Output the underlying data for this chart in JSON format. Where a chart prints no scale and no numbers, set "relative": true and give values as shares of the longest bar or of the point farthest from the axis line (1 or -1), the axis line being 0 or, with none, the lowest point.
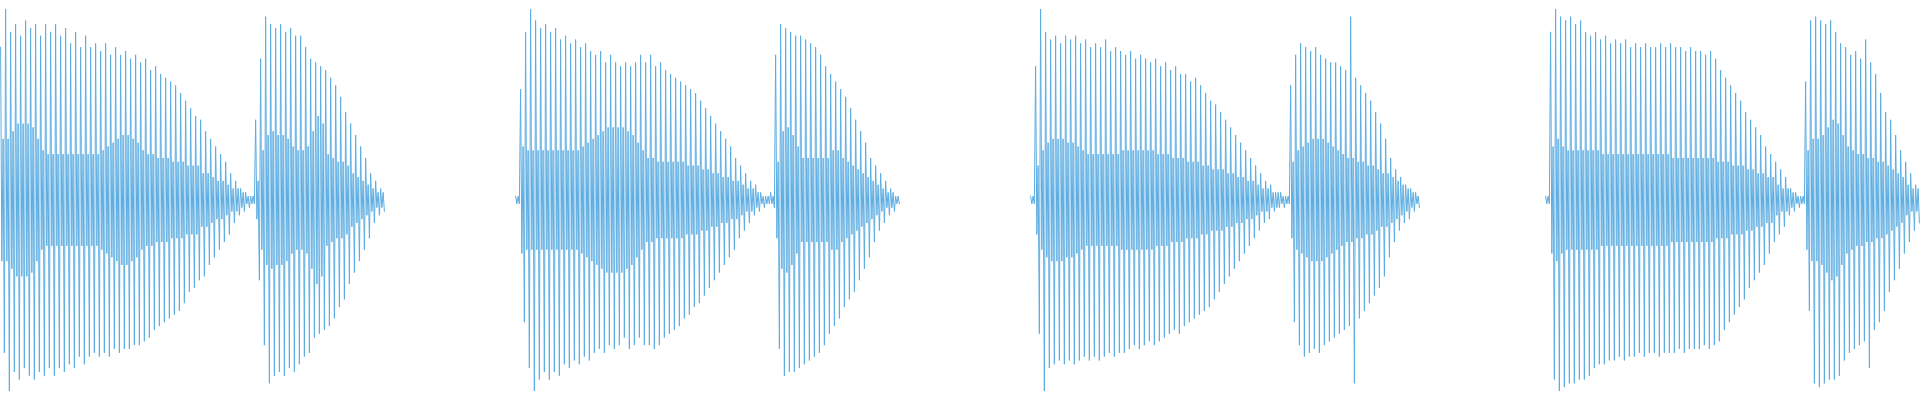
{
  "chart_data": [
    {
      "type": "line",
      "relative": true,
      "color": "#5dade2",
      "categories": [
        null,
        null,
        null,
        null,
        null,
        null,
        null,
        null,
        null,
        null,
        null,
        null,
        null,
        null,
        null,
        null,
        null,
        null,
        null,
        null,
        null,
        null,
        null,
        null,
        null,
        null,
        null,
        null,
        null,
        null,
        null,
        null,
        null,
        null,
        null,
        null,
        null,
        null,
        null,
        null,
        null,
        null,
        null,
        null,
        null,
        null,
        null,
        null,
        null,
        null,
        null,
        null,
        null,
        null,
        null,
        null,
        null,
        null,
        null,
        null,
        null,
        null,
        null,
        null,
        null,
        null,
        null,
        null,
        null,
        null,
        null,
        null,
        null,
        null,
        null,
        null,
        null,
        null,
        null,
        null,
        null,
        null,
        null,
        null,
        null,
        null,
        null,
        null,
        null,
        null,
        null,
        null,
        null,
        null,
        null,
        null,
        null,
        null,
        null,
        null,
        null,
        null,
        null,
        null,
        null,
        null,
        null,
        null,
        null,
        null,
        null,
        null,
        null,
        null,
        null,
        null,
        null,
        null,
        null,
        null,
        null,
        null,
        null,
        null,
        null,
        null,
        null,
        null,
        null,
        null,
        null,
        null,
        null,
        null,
        null,
        null,
        null,
        null,
        null,
        null,
        null,
        null,
        null,
        null,
        null,
        null,
        null,
        null,
        null,
        null,
        null,
        null,
        null,
        null,
        null,
        null,
        null,
        null,
        null,
        null,
        null,
        null,
        null,
        null,
        null,
        null,
        null,
        null,
        null,
        null,
        null,
        null,
        null,
        null,
        null,
        null,
        null,
        null,
        null,
        null,
        null,
        null,
        null,
        null,
        null,
        null,
        null,
        null,
        null,
        null,
        null,
        null,
        null,
        null,
        null,
        null,
        null,
        null,
        null,
        null,
        null,
        null,
        null,
        null,
        null,
        null,
        null,
        null,
        null,
        null,
        null,
        null,
        null,
        null,
        null,
        null,
        null,
        null,
        null,
        null,
        null,
        null,
        null,
        null,
        null,
        null,
        null,
        null,
        null,
        null,
        null,
        null,
        null,
        null,
        null,
        null,
        null,
        null,
        null,
        null,
        null,
        null,
        null,
        null,
        null,
        null,
        null,
        null,
        null,
        null,
        null,
        null,
        null,
        null,
        null,
        null,
        null,
        null,
        null,
        null,
        null,
        null,
        null,
        null,
        null,
        null,
        null,
        null,
        null,
        null,
        null,
        null,
        null,
        null,
        null,
        null,
        null,
        null,
        null,
        null,
        null,
        null,
        null,
        null,
        null,
        null,
        null,
        null,
        null,
        null,
        null,
        null,
        null,
        null,
        null,
        null,
        null,
        null,
        null,
        null,
        null,
        null,
        null,
        null,
        null,
        null,
        null,
        null
      ],
      "values": [
        0.9,
        0.34,
        0.66,
        0.1,
        1,
        0.34,
        0.66,
        0,
        0.94,
        0.32,
        0.68,
        0.05,
        0.96,
        0.3,
        0.7,
        0.03,
        0.93,
        0.3,
        0.7,
        0.06,
        0.97,
        0.3,
        0.7,
        0.04,
        0.95,
        0.31,
        0.69,
        0.03,
        0.96,
        0.34,
        0.66,
        0.05,
        0.93,
        0.37,
        0.63,
        0.04,
        0.96,
        0.38,
        0.62,
        0.06,
        0.94,
        0.38,
        0.62,
        0.04,
        0.96,
        0.38,
        0.62,
        0.06,
        0.93,
        0.38,
        0.62,
        0.05,
        0.95,
        0.38,
        0.62,
        0.07,
        0.91,
        0.38,
        0.62,
        0.06,
        0.94,
        0.38,
        0.62,
        0.09,
        0.9,
        0.38,
        0.62,
        0.07,
        0.93,
        0.38,
        0.62,
        0.09,
        0.9,
        0.38,
        0.62,
        0.1,
        0.91,
        0.38,
        0.62,
        0.09,
        0.89,
        0.37,
        0.63,
        0.1,
        0.91,
        0.36,
        0.64,
        0.09,
        0.88,
        0.35,
        0.65,
        0.11,
        0.9,
        0.34,
        0.66,
        0.1,
        0.88,
        0.33,
        0.67,
        0.11,
        0.89,
        0.33,
        0.67,
        0.11,
        0.87,
        0.34,
        0.66,
        0.12,
        0.88,
        0.35,
        0.65,
        0.12,
        0.86,
        0.37,
        0.63,
        0.13,
        0.87,
        0.38,
        0.62,
        0.14,
        0.84,
        0.38,
        0.62,
        0.16,
        0.85,
        0.39,
        0.61,
        0.17,
        0.83,
        0.39,
        0.61,
        0.18,
        0.82,
        0.39,
        0.61,
        0.19,
        0.81,
        0.4,
        0.6,
        0.2,
        0.8,
        0.4,
        0.6,
        0.21,
        0.78,
        0.4,
        0.6,
        0.23,
        0.76,
        0.41,
        0.59,
        0.26,
        0.74,
        0.41,
        0.59,
        0.27,
        0.72,
        0.41,
        0.59,
        0.29,
        0.71,
        0.43,
        0.57,
        0.3,
        0.68,
        0.43,
        0.57,
        0.33,
        0.66,
        0.44,
        0.56,
        0.35,
        0.64,
        0.45,
        0.55,
        0.37,
        0.62,
        0.45,
        0.55,
        0.39,
        0.6,
        0.46,
        0.54,
        0.41,
        0.57,
        0.47,
        0.53,
        0.44,
        0.55,
        0.47,
        0.53,
        0.46,
        0.53,
        0.48,
        0.52,
        0.47,
        0.52,
        0.49,
        0.51,
        0.48,
        0.51,
        0.49,
        0.51,
        0.49,
        0.71,
        0.45,
        0.55,
        0.29,
        0.87,
        0.37,
        0.63,
        0.12,
        0.98,
        0.33,
        0.67,
        0.02,
        0.96,
        0.32,
        0.68,
        0.04,
        0.95,
        0.33,
        0.67,
        0.05,
        0.96,
        0.33,
        0.67,
        0.04,
        0.94,
        0.34,
        0.66,
        0.06,
        0.95,
        0.36,
        0.64,
        0.05,
        0.93,
        0.37,
        0.63,
        0.07,
        0.93,
        0.37,
        0.63,
        0.09,
        0.9,
        0.36,
        0.64,
        0.1,
        0.87,
        0.32,
        0.68,
        0.14,
        0.86,
        0.28,
        0.72,
        0.15,
        0.85,
        0.3,
        0.7,
        0.16,
        0.84,
        0.38,
        0.62,
        0.17,
        0.82,
        0.39,
        0.61,
        0.19,
        0.8,
        0.4,
        0.6,
        0.22,
        0.77,
        0.4,
        0.6,
        0.24,
        0.73,
        0.41,
        0.59,
        0.28,
        0.7,
        0.43,
        0.57,
        0.31,
        0.67,
        0.44,
        0.56,
        0.34,
        0.64,
        0.45,
        0.55,
        0.37,
        0.61,
        0.46,
        0.54,
        0.4,
        0.57,
        0.47,
        0.53,
        0.44,
        0.55,
        0.48,
        0.52,
        0.46,
        0.53,
        0.48,
        0.52,
        0.47
      ]
    },
    {
      "type": "line",
      "relative": true,
      "color": "#5dade2",
      "categories": [
        null,
        null,
        null,
        null,
        null,
        null,
        null,
        null,
        null,
        null,
        null,
        null,
        null,
        null,
        null,
        null,
        null,
        null,
        null,
        null,
        null,
        null,
        null,
        null,
        null,
        null,
        null,
        null,
        null,
        null,
        null,
        null,
        null,
        null,
        null,
        null,
        null,
        null,
        null,
        null,
        null,
        null,
        null,
        null,
        null,
        null,
        null,
        null,
        null,
        null,
        null,
        null,
        null,
        null,
        null,
        null,
        null,
        null,
        null,
        null,
        null,
        null,
        null,
        null,
        null,
        null,
        null,
        null,
        null,
        null,
        null,
        null,
        null,
        null,
        null,
        null,
        null,
        null,
        null,
        null,
        null,
        null,
        null,
        null,
        null,
        null,
        null,
        null,
        null,
        null,
        null,
        null,
        null,
        null,
        null,
        null,
        null,
        null,
        null,
        null,
        null,
        null,
        null,
        null,
        null,
        null,
        null,
        null,
        null,
        null,
        null,
        null,
        null,
        null,
        null,
        null,
        null,
        null,
        null,
        null,
        null,
        null,
        null,
        null,
        null,
        null,
        null,
        null,
        null,
        null,
        null,
        null,
        null,
        null,
        null,
        null,
        null,
        null,
        null,
        null,
        null,
        null,
        null,
        null,
        null,
        null,
        null,
        null,
        null,
        null,
        null,
        null,
        null,
        null,
        null,
        null,
        null,
        null,
        null,
        null,
        null,
        null,
        null,
        null,
        null,
        null,
        null,
        null,
        null,
        null,
        null,
        null,
        null,
        null,
        null,
        null,
        null,
        null,
        null,
        null,
        null,
        null,
        null,
        null,
        null,
        null,
        null,
        null,
        null,
        null,
        null,
        null,
        null,
        null,
        null,
        null,
        null,
        null,
        null,
        null,
        null,
        null,
        null,
        null,
        null,
        null,
        null,
        null,
        null,
        null,
        null,
        null,
        null,
        null,
        null,
        null,
        null,
        null,
        null,
        null,
        null,
        null,
        null,
        null,
        null,
        null,
        null,
        null,
        null,
        null,
        null,
        null,
        null,
        null,
        null,
        null,
        null,
        null,
        null,
        null,
        null,
        null,
        null,
        null,
        null,
        null,
        null,
        null,
        null,
        null,
        null,
        null,
        null,
        null,
        null,
        null,
        null,
        null,
        null,
        null,
        null,
        null,
        null,
        null,
        null,
        null,
        null,
        null,
        null,
        null,
        null,
        null,
        null,
        null,
        null,
        null,
        null,
        null,
        null,
        null,
        null,
        null,
        null,
        null,
        null,
        null,
        null,
        null,
        null,
        null,
        null,
        null,
        null,
        null,
        null,
        null,
        null,
        null,
        null,
        null,
        null,
        null,
        null,
        null,
        null,
        null,
        null,
        null
      ],
      "values": [
        0.51,
        0.49,
        0.51,
        0.49,
        0.79,
        0.36,
        0.64,
        0.18,
        0.94,
        0.37,
        0.63,
        0.06,
        1,
        0.37,
        0.63,
        0,
        0.97,
        0.37,
        0.63,
        0.03,
        0.95,
        0.37,
        0.63,
        0.05,
        0.96,
        0.37,
        0.63,
        0.03,
        0.94,
        0.37,
        0.63,
        0.05,
        0.95,
        0.37,
        0.63,
        0.04,
        0.92,
        0.37,
        0.63,
        0.07,
        0.93,
        0.37,
        0.63,
        0.06,
        0.91,
        0.37,
        0.63,
        0.08,
        0.92,
        0.37,
        0.63,
        0.07,
        0.9,
        0.36,
        0.64,
        0.09,
        0.91,
        0.35,
        0.65,
        0.08,
        0.89,
        0.34,
        0.66,
        0.1,
        0.88,
        0.33,
        0.67,
        0.11,
        0.89,
        0.32,
        0.68,
        0.1,
        0.86,
        0.31,
        0.69,
        0.12,
        0.88,
        0.31,
        0.69,
        0.11,
        0.86,
        0.31,
        0.69,
        0.12,
        0.85,
        0.31,
        0.69,
        0.14,
        0.86,
        0.32,
        0.68,
        0.11,
        0.85,
        0.33,
        0.67,
        0.12,
        0.86,
        0.35,
        0.65,
        0.14,
        0.88,
        0.37,
        0.63,
        0.12,
        0.86,
        0.39,
        0.61,
        0.12,
        0.88,
        0.39,
        0.61,
        0.11,
        0.85,
        0.4,
        0.6,
        0.12,
        0.86,
        0.4,
        0.6,
        0.14,
        0.84,
        0.4,
        0.6,
        0.15,
        0.83,
        0.4,
        0.6,
        0.16,
        0.82,
        0.4,
        0.6,
        0.17,
        0.81,
        0.4,
        0.6,
        0.19,
        0.8,
        0.41,
        0.59,
        0.2,
        0.79,
        0.41,
        0.59,
        0.22,
        0.78,
        0.41,
        0.59,
        0.23,
        0.76,
        0.42,
        0.58,
        0.25,
        0.74,
        0.42,
        0.58,
        0.27,
        0.72,
        0.43,
        0.57,
        0.29,
        0.7,
        0.43,
        0.57,
        0.31,
        0.68,
        0.44,
        0.56,
        0.33,
        0.66,
        0.44,
        0.56,
        0.35,
        0.64,
        0.45,
        0.55,
        0.37,
        0.61,
        0.45,
        0.55,
        0.4,
        0.59,
        0.46,
        0.54,
        0.42,
        0.57,
        0.47,
        0.53,
        0.44,
        0.55,
        0.47,
        0.53,
        0.46,
        0.54,
        0.48,
        0.52,
        0.47,
        0.52,
        0.49,
        0.51,
        0.48,
        0.51,
        0.49,
        0.51,
        0.49,
        0.52,
        0.49,
        0.51,
        0.48,
        0.88,
        0.4,
        0.6,
        0.11,
        0.96,
        0.32,
        0.68,
        0.04,
        0.95,
        0.31,
        0.69,
        0.05,
        0.94,
        0.33,
        0.67,
        0.05,
        0.93,
        0.36,
        0.64,
        0.06,
        0.93,
        0.39,
        0.61,
        0.07,
        0.92,
        0.39,
        0.61,
        0.08,
        0.91,
        0.39,
        0.61,
        0.09,
        0.9,
        0.39,
        0.61,
        0.1,
        0.88,
        0.39,
        0.61,
        0.12,
        0.85,
        0.39,
        0.61,
        0.15,
        0.83,
        0.37,
        0.63,
        0.17,
        0.81,
        0.37,
        0.63,
        0.19,
        0.79,
        0.39,
        0.61,
        0.22,
        0.77,
        0.4,
        0.6,
        0.24,
        0.74,
        0.41,
        0.59,
        0.26,
        0.71,
        0.42,
        0.58,
        0.29,
        0.68,
        0.43,
        0.57,
        0.32,
        0.65,
        0.44,
        0.56,
        0.35,
        0.61,
        0.45,
        0.55,
        0.39,
        0.59,
        0.46,
        0.54,
        0.42,
        0.57,
        0.47,
        0.53,
        0.44,
        0.55,
        0.48,
        0.52,
        0.46,
        0.53,
        0.48,
        0.52,
        0.47,
        0.51,
        0.49,
        0.51,
        0.49
      ]
    },
    {
      "type": "line",
      "relative": true,
      "color": "#5dade2",
      "categories": [
        null,
        null,
        null,
        null,
        null,
        null,
        null,
        null,
        null,
        null,
        null,
        null,
        null,
        null,
        null,
        null,
        null,
        null,
        null,
        null,
        null,
        null,
        null,
        null,
        null,
        null,
        null,
        null,
        null,
        null,
        null,
        null,
        null,
        null,
        null,
        null,
        null,
        null,
        null,
        null,
        null,
        null,
        null,
        null,
        null,
        null,
        null,
        null,
        null,
        null,
        null,
        null,
        null,
        null,
        null,
        null,
        null,
        null,
        null,
        null,
        null,
        null,
        null,
        null,
        null,
        null,
        null,
        null,
        null,
        null,
        null,
        null,
        null,
        null,
        null,
        null,
        null,
        null,
        null,
        null,
        null,
        null,
        null,
        null,
        null,
        null,
        null,
        null,
        null,
        null,
        null,
        null,
        null,
        null,
        null,
        null,
        null,
        null,
        null,
        null,
        null,
        null,
        null,
        null,
        null,
        null,
        null,
        null,
        null,
        null,
        null,
        null,
        null,
        null,
        null,
        null,
        null,
        null,
        null,
        null,
        null,
        null,
        null,
        null,
        null,
        null,
        null,
        null,
        null,
        null,
        null,
        null,
        null,
        null,
        null,
        null,
        null,
        null,
        null,
        null,
        null,
        null,
        null,
        null,
        null,
        null,
        null,
        null,
        null,
        null,
        null,
        null,
        null,
        null,
        null,
        null,
        null,
        null,
        null,
        null,
        null,
        null,
        null,
        null,
        null,
        null,
        null,
        null,
        null,
        null,
        null,
        null,
        null,
        null,
        null,
        null,
        null,
        null,
        null,
        null,
        null,
        null,
        null,
        null,
        null,
        null,
        null,
        null,
        null,
        null,
        null,
        null,
        null,
        null,
        null,
        null,
        null,
        null,
        null,
        null,
        null,
        null,
        null,
        null,
        null,
        null,
        null,
        null,
        null,
        null,
        null,
        null,
        null,
        null,
        null,
        null,
        null,
        null,
        null,
        null,
        null,
        null,
        null,
        null,
        null,
        null,
        null,
        null,
        null,
        null,
        null,
        null,
        null,
        null,
        null,
        null,
        null,
        null,
        null,
        null,
        null,
        null,
        null,
        null,
        null,
        null,
        null,
        null,
        null,
        null,
        null,
        null,
        null,
        null,
        null,
        null,
        null,
        null,
        null,
        null,
        null,
        null,
        null,
        null,
        null,
        null,
        null,
        null,
        null,
        null,
        null,
        null,
        null,
        null,
        null,
        null,
        null,
        null,
        null,
        null,
        null,
        null,
        null,
        null,
        null,
        null,
        null,
        null,
        null,
        null,
        null,
        null,
        null,
        null,
        null,
        null,
        null,
        null,
        null,
        null,
        null,
        null,
        null,
        null,
        null,
        null,
        null,
        null,
        null,
        null,
        null,
        null
      ],
      "values": [
        0.51,
        0.49,
        0.51,
        0.49,
        0.85,
        0.41,
        0.59,
        0.15,
        1,
        0.37,
        0.63,
        0,
        0.94,
        0.35,
        0.65,
        0.06,
        0.92,
        0.34,
        0.66,
        0.07,
        0.93,
        0.34,
        0.66,
        0.08,
        0.91,
        0.34,
        0.66,
        0.07,
        0.93,
        0.35,
        0.65,
        0.08,
        0.92,
        0.35,
        0.65,
        0.07,
        0.93,
        0.36,
        0.64,
        0.08,
        0.91,
        0.37,
        0.63,
        0.09,
        0.92,
        0.38,
        0.62,
        0.08,
        0.9,
        0.38,
        0.62,
        0.09,
        0.91,
        0.38,
        0.62,
        0.08,
        0.9,
        0.38,
        0.62,
        0.09,
        0.92,
        0.38,
        0.62,
        0.1,
        0.89,
        0.38,
        0.62,
        0.09,
        0.9,
        0.38,
        0.62,
        0.1,
        0.89,
        0.37,
        0.63,
        0.1,
        0.88,
        0.37,
        0.63,
        0.11,
        0.89,
        0.37,
        0.63,
        0.12,
        0.87,
        0.37,
        0.63,
        0.11,
        0.88,
        0.37,
        0.63,
        0.12,
        0.87,
        0.37,
        0.63,
        0.13,
        0.86,
        0.37,
        0.63,
        0.12,
        0.87,
        0.38,
        0.62,
        0.13,
        0.85,
        0.38,
        0.62,
        0.14,
        0.86,
        0.38,
        0.62,
        0.15,
        0.84,
        0.39,
        0.61,
        0.16,
        0.85,
        0.39,
        0.61,
        0.15,
        0.83,
        0.39,
        0.61,
        0.17,
        0.83,
        0.4,
        0.6,
        0.18,
        0.81,
        0.4,
        0.6,
        0.19,
        0.82,
        0.4,
        0.6,
        0.2,
        0.8,
        0.41,
        0.59,
        0.21,
        0.78,
        0.41,
        0.59,
        0.22,
        0.76,
        0.42,
        0.58,
        0.24,
        0.75,
        0.42,
        0.58,
        0.26,
        0.73,
        0.42,
        0.58,
        0.28,
        0.71,
        0.43,
        0.57,
        0.3,
        0.69,
        0.43,
        0.57,
        0.32,
        0.67,
        0.44,
        0.56,
        0.34,
        0.65,
        0.44,
        0.56,
        0.36,
        0.63,
        0.45,
        0.55,
        0.38,
        0.61,
        0.45,
        0.55,
        0.4,
        0.59,
        0.46,
        0.54,
        0.42,
        0.57,
        0.47,
        0.53,
        0.44,
        0.55,
        0.47,
        0.53,
        0.45,
        0.54,
        0.48,
        0.52,
        0.47,
        0.52,
        0.48,
        0.52,
        0.48,
        0.52,
        0.49,
        0.51,
        0.48,
        0.51,
        0.49,
        0.51,
        0.49,
        0.8,
        0.4,
        0.6,
        0.18,
        0.88,
        0.37,
        0.63,
        0.12,
        0.91,
        0.36,
        0.64,
        0.09,
        0.9,
        0.35,
        0.65,
        0.1,
        0.89,
        0.34,
        0.66,
        0.11,
        0.9,
        0.34,
        0.66,
        0.1,
        0.88,
        0.34,
        0.66,
        0.12,
        0.87,
        0.35,
        0.65,
        0.13,
        0.86,
        0.36,
        0.64,
        0.14,
        0.86,
        0.37,
        0.63,
        0.15,
        0.85,
        0.38,
        0.62,
        0.16,
        0.84,
        0.39,
        0.61,
        0.17,
        0.98,
        0.39,
        0.61,
        0.02,
        0.82,
        0.4,
        0.6,
        0.19,
        0.8,
        0.4,
        0.6,
        0.21,
        0.78,
        0.41,
        0.59,
        0.23,
        0.76,
        0.41,
        0.59,
        0.25,
        0.73,
        0.42,
        0.58,
        0.27,
        0.7,
        0.43,
        0.57,
        0.3,
        0.66,
        0.43,
        0.57,
        0.35,
        0.61,
        0.44,
        0.56,
        0.39,
        0.58,
        0.45,
        0.55,
        0.42,
        0.56,
        0.46,
        0.54,
        0.44,
        0.54,
        0.47,
        0.53,
        0.45,
        0.53,
        0.48,
        0.52,
        0.47,
        0.52,
        0.49,
        0.51,
        0.48
      ]
    },
    {
      "type": "line",
      "relative": true,
      "color": "#5dade2",
      "categories": [
        null,
        null,
        null,
        null,
        null,
        null,
        null,
        null,
        null,
        null,
        null,
        null,
        null,
        null,
        null,
        null,
        null,
        null,
        null,
        null,
        null,
        null,
        null,
        null,
        null,
        null,
        null,
        null,
        null,
        null,
        null,
        null,
        null,
        null,
        null,
        null,
        null,
        null,
        null,
        null,
        null,
        null,
        null,
        null,
        null,
        null,
        null,
        null,
        null,
        null,
        null,
        null,
        null,
        null,
        null,
        null,
        null,
        null,
        null,
        null,
        null,
        null,
        null,
        null,
        null,
        null,
        null,
        null,
        null,
        null,
        null,
        null,
        null,
        null,
        null,
        null,
        null,
        null,
        null,
        null,
        null,
        null,
        null,
        null,
        null,
        null,
        null,
        null,
        null,
        null,
        null,
        null,
        null,
        null,
        null,
        null,
        null,
        null,
        null,
        null,
        null,
        null,
        null,
        null,
        null,
        null,
        null,
        null,
        null,
        null,
        null,
        null,
        null,
        null,
        null,
        null,
        null,
        null,
        null,
        null,
        null,
        null,
        null,
        null,
        null,
        null,
        null,
        null,
        null,
        null,
        null,
        null,
        null,
        null,
        null,
        null,
        null,
        null,
        null,
        null,
        null,
        null,
        null,
        null,
        null,
        null,
        null,
        null,
        null,
        null,
        null,
        null,
        null,
        null,
        null,
        null,
        null,
        null,
        null,
        null,
        null,
        null,
        null,
        null,
        null,
        null,
        null,
        null,
        null,
        null,
        null,
        null,
        null,
        null,
        null,
        null,
        null,
        null,
        null,
        null,
        null,
        null,
        null,
        null,
        null,
        null,
        null,
        null,
        null,
        null,
        null,
        null,
        null,
        null,
        null,
        null,
        null,
        null,
        null,
        null,
        null,
        null,
        null,
        null,
        null,
        null,
        null,
        null,
        null,
        null,
        null,
        null,
        null,
        null,
        null,
        null,
        null,
        null,
        null,
        null,
        null,
        null,
        null,
        null,
        null,
        null,
        null,
        null,
        null,
        null,
        null,
        null,
        null,
        null,
        null,
        null,
        null,
        null,
        null,
        null,
        null,
        null,
        null,
        null,
        null,
        null,
        null,
        null,
        null,
        null,
        null,
        null,
        null,
        null,
        null,
        null,
        null,
        null,
        null,
        null,
        null,
        null,
        null,
        null,
        null,
        null,
        null,
        null,
        null,
        null,
        null,
        null,
        null,
        null,
        null,
        null,
        null,
        null,
        null,
        null,
        null,
        null,
        null,
        null,
        null,
        null,
        null,
        null,
        null,
        null,
        null,
        null,
        null,
        null,
        null,
        null,
        null,
        null,
        null,
        null
      ],
      "values": [
        0.51,
        0.49,
        0.51,
        0.49,
        0.94,
        0.36,
        0.64,
        0.03,
        1,
        0.34,
        0.66,
        0,
        0.98,
        0.36,
        0.64,
        0.01,
        0.97,
        0.37,
        0.63,
        0.02,
        0.98,
        0.37,
        0.63,
        0.02,
        0.96,
        0.37,
        0.63,
        0.03,
        0.97,
        0.37,
        0.63,
        0.03,
        0.94,
        0.37,
        0.63,
        0.04,
        0.93,
        0.37,
        0.63,
        0.06,
        0.94,
        0.37,
        0.63,
        0.07,
        0.92,
        0.38,
        0.62,
        0.07,
        0.93,
        0.38,
        0.62,
        0.08,
        0.91,
        0.38,
        0.62,
        0.08,
        0.92,
        0.38,
        0.62,
        0.09,
        0.91,
        0.38,
        0.62,
        0.08,
        0.92,
        0.38,
        0.62,
        0.09,
        0.9,
        0.38,
        0.62,
        0.09,
        0.91,
        0.38,
        0.62,
        0.1,
        0.9,
        0.38,
        0.62,
        0.09,
        0.91,
        0.38,
        0.62,
        0.1,
        0.9,
        0.38,
        0.62,
        0.1,
        0.9,
        0.38,
        0.62,
        0.09,
        0.91,
        0.38,
        0.62,
        0.1,
        0.9,
        0.38,
        0.62,
        0.1,
        0.91,
        0.39,
        0.61,
        0.1,
        0.9,
        0.39,
        0.61,
        0.11,
        0.9,
        0.39,
        0.61,
        0.1,
        0.89,
        0.39,
        0.61,
        0.11,
        0.9,
        0.39,
        0.61,
        0.11,
        0.89,
        0.39,
        0.61,
        0.11,
        0.89,
        0.39,
        0.61,
        0.12,
        0.88,
        0.39,
        0.61,
        0.11,
        0.89,
        0.39,
        0.61,
        0.12,
        0.87,
        0.4,
        0.6,
        0.13,
        0.84,
        0.4,
        0.6,
        0.16,
        0.82,
        0.4,
        0.6,
        0.18,
        0.8,
        0.41,
        0.59,
        0.2,
        0.78,
        0.41,
        0.59,
        0.22,
        0.76,
        0.41,
        0.59,
        0.24,
        0.73,
        0.42,
        0.58,
        0.27,
        0.71,
        0.42,
        0.58,
        0.29,
        0.69,
        0.43,
        0.57,
        0.31,
        0.67,
        0.43,
        0.57,
        0.33,
        0.64,
        0.44,
        0.56,
        0.36,
        0.62,
        0.44,
        0.56,
        0.39,
        0.6,
        0.46,
        0.54,
        0.41,
        0.58,
        0.47,
        0.53,
        0.43,
        0.56,
        0.47,
        0.53,
        0.46,
        0.53,
        0.48,
        0.52,
        0.47,
        0.52,
        0.49,
        0.51,
        0.48,
        0.51,
        0.49,
        0.51,
        0.49,
        0.81,
        0.37,
        0.63,
        0.21,
        0.97,
        0.34,
        0.66,
        0.02,
        0.98,
        0.34,
        0.66,
        0.01,
        0.97,
        0.33,
        0.67,
        0.02,
        0.96,
        0.31,
        0.69,
        0.03,
        0.97,
        0.29,
        0.71,
        0.03,
        0.94,
        0.3,
        0.7,
        0.04,
        0.91,
        0.33,
        0.67,
        0.08,
        0.9,
        0.36,
        0.64,
        0.1,
        0.88,
        0.37,
        0.63,
        0.11,
        0.89,
        0.38,
        0.62,
        0.12,
        0.87,
        0.38,
        0.62,
        0.13,
        0.92,
        0.39,
        0.61,
        0.06,
        0.86,
        0.39,
        0.61,
        0.16,
        0.83,
        0.4,
        0.6,
        0.18,
        0.78,
        0.4,
        0.6,
        0.21,
        0.73,
        0.41,
        0.59,
        0.26,
        0.71,
        0.42,
        0.58,
        0.29,
        0.67,
        0.43,
        0.57,
        0.32,
        0.63,
        0.44,
        0.56,
        0.36,
        0.6,
        0.46,
        0.54,
        0.39,
        0.57,
        0.47,
        0.53,
        0.42,
        0.54,
        0.47,
        0.53,
        0.44
      ]
    }
  ]
}
